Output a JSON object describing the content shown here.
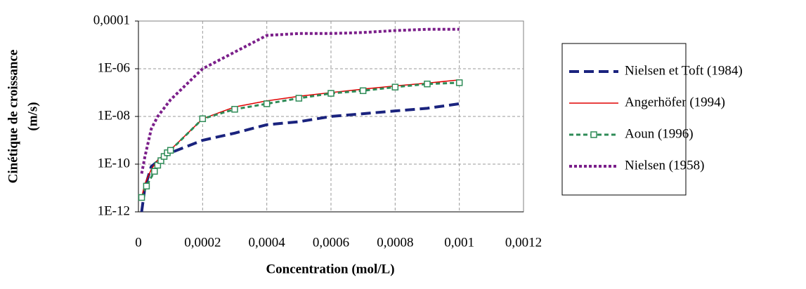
{
  "chart_data": {
    "type": "line",
    "xlabel": "Concentration (mol/L)",
    "ylabel": [
      "Cinétique de croissance",
      "(m/s)"
    ],
    "yscale": "log",
    "grid": true,
    "legend": "right",
    "xlim": [
      0,
      0.0012
    ],
    "xticks": [
      0,
      {
        "value": 0.0002,
        "label": "0,0002"
      },
      {
        "value": 0.0004,
        "label": "0,0004"
      },
      {
        "value": 0.0006,
        "label": "0,0006"
      },
      {
        "value": 0.0008,
        "label": "0,0008"
      },
      {
        "value": 0.001,
        "label": "0,001"
      },
      {
        "value": 0.0012,
        "label": "0,0012"
      }
    ],
    "ylim": [
      1e-12,
      0.0001
    ],
    "yticks": [
      {
        "value": 1e-12,
        "label": "1E-12"
      },
      {
        "value": 1e-10,
        "label": "1E-10"
      },
      {
        "value": 1e-08,
        "label": "1E-08"
      },
      {
        "value": 1e-06,
        "label": "1E-06"
      },
      {
        "value": 0.0001,
        "label": "0,0001"
      }
    ],
    "series": [
      {
        "name": "Nielsen et Toft (1984)",
        "color": "#1a237e",
        "linestyle": "long-dash",
        "x": [
          1e-05,
          2e-05,
          4e-05,
          6e-05,
          0.0001,
          0.0002,
          0.0003,
          0.0004,
          0.0005,
          0.0006,
          0.0007,
          0.0008,
          0.0009,
          0.001
        ],
        "values": [
          1e-12,
          1e-11,
          8e-11,
          1.3e-10,
          3e-10,
          1e-09,
          2e-09,
          4.5e-09,
          6e-09,
          1e-08,
          1.3e-08,
          1.7e-08,
          2.2e-08,
          3.4e-08
        ]
      },
      {
        "name": "Angerhöfer (1994)",
        "color": "#e00000",
        "linestyle": "solid",
        "x": [
          1e-05,
          2e-05,
          4e-05,
          6e-05,
          0.0001,
          0.0002,
          0.0003,
          0.0004,
          0.0005,
          0.0006,
          0.0007,
          0.0008,
          0.0009,
          0.001
        ],
        "values": [
          4e-12,
          1.5e-11,
          6e-11,
          1.5e-10,
          4e-10,
          8e-09,
          2.5e-08,
          4.5e-08,
          7e-08,
          1e-07,
          1.4e-07,
          1.9e-07,
          2.5e-07,
          3.4e-07
        ]
      },
      {
        "name": "Aoun (1996)",
        "color": "#2e8b57",
        "linestyle": "dashed",
        "marker": "square",
        "x": [
          1e-05,
          2.5e-05,
          5e-05,
          6e-05,
          7e-05,
          8e-05,
          9e-05,
          0.0001,
          0.0002,
          0.0003,
          0.0004,
          0.0005,
          0.0006,
          0.0007,
          0.0008,
          0.0009,
          0.001
        ],
        "values": [
          4e-12,
          1.2e-11,
          5e-11,
          9e-11,
          1.4e-10,
          2.1e-10,
          3e-10,
          3.8e-10,
          8e-09,
          2e-08,
          3.4e-08,
          5.8e-08,
          9.3e-08,
          1.2e-07,
          1.7e-07,
          2.3e-07,
          2.6e-07
        ]
      },
      {
        "name": "Nielsen (1958)",
        "color": "#7b1f8a",
        "linestyle": "dotted",
        "x": [
          1e-05,
          2e-05,
          4e-05,
          6e-05,
          0.0001,
          0.0002,
          0.0003,
          0.0004,
          0.0005,
          0.0006,
          0.0007,
          0.0008,
          0.0009,
          0.001
        ],
        "values": [
          4e-11,
          2e-10,
          3e-09,
          1e-08,
          5e-08,
          1e-06,
          5e-06,
          2.5e-05,
          3e-05,
          3e-05,
          3.3e-05,
          4e-05,
          4.5e-05,
          4.5e-05
        ]
      }
    ]
  }
}
